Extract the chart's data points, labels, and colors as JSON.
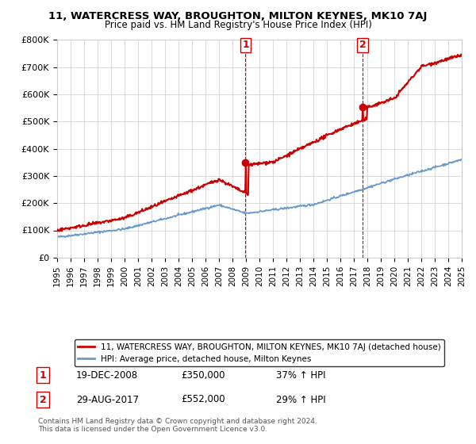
{
  "title": "11, WATERCRESS WAY, BROUGHTON, MILTON KEYNES, MK10 7AJ",
  "subtitle": "Price paid vs. HM Land Registry's House Price Index (HPI)",
  "ylabel_ticks": [
    "£0",
    "£100K",
    "£200K",
    "£300K",
    "£400K",
    "£500K",
    "£600K",
    "£700K",
    "£800K"
  ],
  "ylim": [
    0,
    800000
  ],
  "xlim_start": 1995,
  "xlim_end": 2025,
  "red_color": "#cc0000",
  "blue_color": "#6699cc",
  "dashed_red": "#cc0000",
  "marker1_x": 2008.97,
  "marker1_y": 350000,
  "marker2_x": 2017.66,
  "marker2_y": 552000,
  "legend_label_red": "11, WATERCRESS WAY, BROUGHTON, MILTON KEYNES, MK10 7AJ (detached house)",
  "legend_label_blue": "HPI: Average price, detached house, Milton Keynes",
  "annotation1_date": "19-DEC-2008",
  "annotation1_price": "£350,000",
  "annotation1_hpi": "37% ↑ HPI",
  "annotation2_date": "29-AUG-2017",
  "annotation2_price": "£552,000",
  "annotation2_hpi": "29% ↑ HPI",
  "footnote": "Contains HM Land Registry data © Crown copyright and database right 2024.\nThis data is licensed under the Open Government Licence v3.0.",
  "background_color": "#ffffff",
  "grid_color": "#cccccc"
}
